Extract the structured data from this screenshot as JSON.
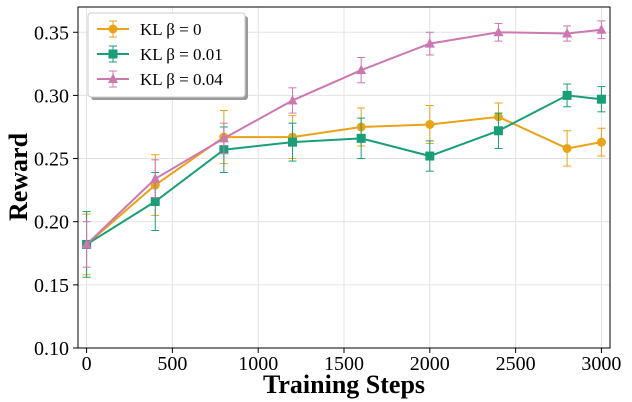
{
  "chart_data": {
    "type": "line",
    "xlabel": "Training Steps",
    "ylabel": "Reward",
    "xlim": [
      -50,
      3050
    ],
    "ylim": [
      0.1,
      0.37
    ],
    "xticks": [
      0,
      500,
      1000,
      1500,
      2000,
      2500,
      3000
    ],
    "yticks": [
      0.1,
      0.15,
      0.2,
      0.25,
      0.3,
      0.35
    ],
    "xtick_labels": [
      "0",
      "500",
      "1000",
      "1500",
      "2000",
      "2500",
      "3000"
    ],
    "ytick_labels": [
      "0.10",
      "0.15",
      "0.20",
      "0.25",
      "0.30",
      "0.35"
    ],
    "grid": true,
    "legend_position": "top-left",
    "x": [
      0,
      400,
      800,
      1200,
      1600,
      2000,
      2400,
      2800,
      3000
    ],
    "series": [
      {
        "name": "KL β = 0",
        "color": "#E8A317",
        "marker": "circle",
        "values": [
          0.182,
          0.229,
          0.267,
          0.267,
          0.275,
          0.277,
          0.283,
          0.258,
          0.263
        ],
        "errors": [
          0.024,
          0.024,
          0.021,
          0.017,
          0.015,
          0.015,
          0.011,
          0.014,
          0.011
        ]
      },
      {
        "name": "KL β = 0.01",
        "color": "#1A9E77",
        "marker": "square",
        "values": [
          0.182,
          0.216,
          0.257,
          0.263,
          0.266,
          0.252,
          0.272,
          0.3,
          0.297
        ],
        "errors": [
          0.026,
          0.023,
          0.018,
          0.015,
          0.016,
          0.012,
          0.014,
          0.009,
          0.01
        ]
      },
      {
        "name": "KL β = 0.04",
        "color": "#CC78B0",
        "marker": "triangle",
        "values": [
          0.182,
          0.234,
          0.266,
          0.296,
          0.32,
          0.341,
          0.35,
          0.349,
          0.352
        ],
        "errors": [
          0.018,
          0.015,
          0.012,
          0.01,
          0.01,
          0.009,
          0.007,
          0.006,
          0.007
        ]
      }
    ]
  }
}
